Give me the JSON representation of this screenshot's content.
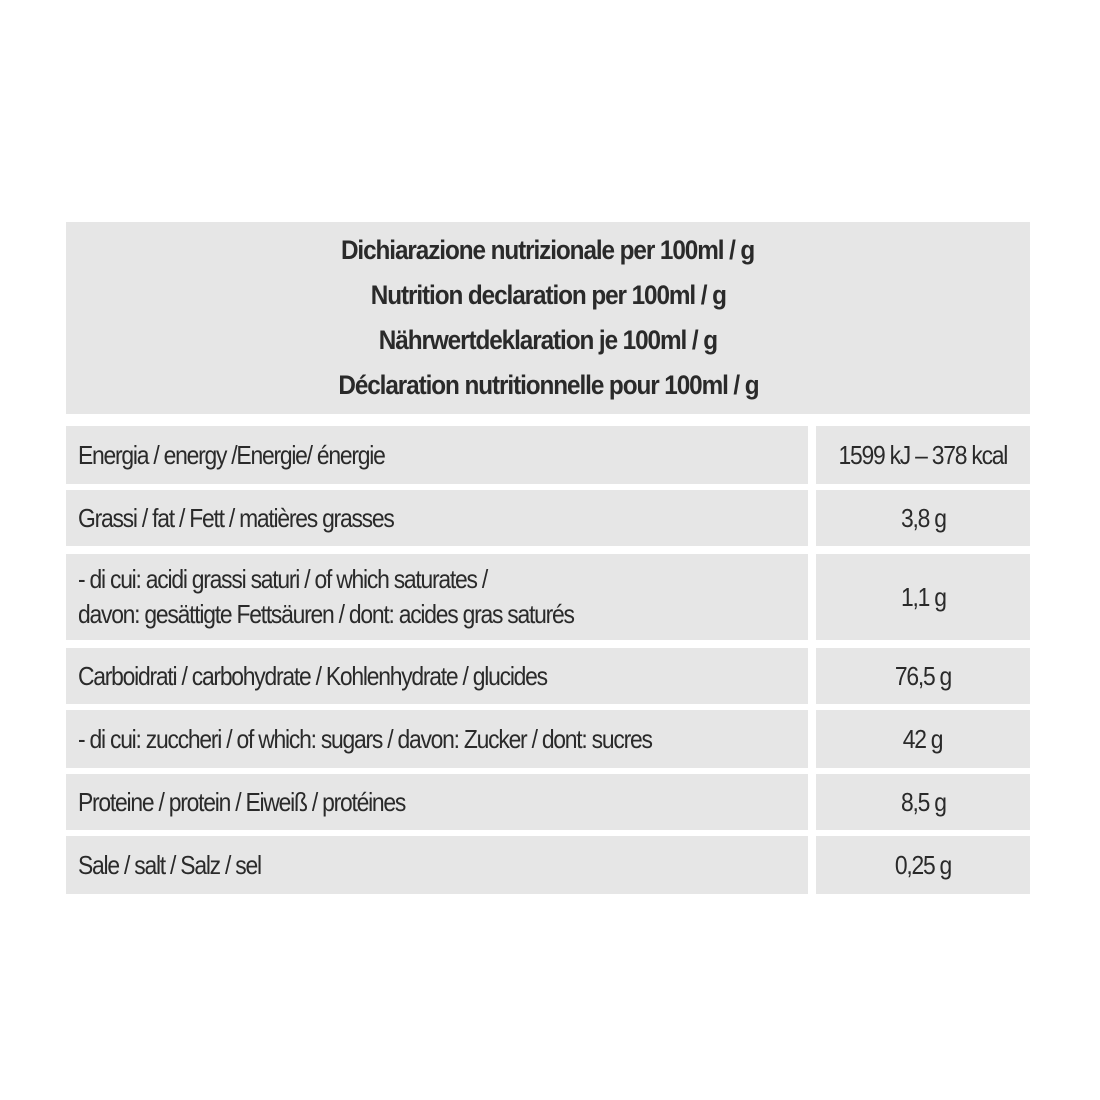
{
  "header": {
    "lines": [
      "Dichiarazione nutrizionale per 100ml / g",
      "Nutrition declaration per 100ml / g",
      "Nährwertdeklaration je 100ml / g",
      "Déclaration nutritionnelle pour 100ml / g"
    ]
  },
  "rows": [
    {
      "label": [
        "Energia / energy /Energie/ énergie"
      ],
      "value": "1599 kJ – 378 kcal"
    },
    {
      "label": [
        "Grassi / fat / Fett / matières grasses"
      ],
      "value": "3,8 g"
    },
    {
      "label": [
        "- di cui: acidi grassi saturi / of which saturates /",
        "davon: gesättigte Fettsäuren / dont: acides gras saturés"
      ],
      "value": "1,1 g"
    },
    {
      "label": [
        "Carboidrati / carbohydrate / Kohlenhydrate / glucides"
      ],
      "value": "76,5 g"
    },
    {
      "label": [
        "- di cui: zuccheri / of which: sugars / davon: Zucker / dont: sucres"
      ],
      "value": "42 g"
    },
    {
      "label": [
        "Proteine / protein / Eiweiß / protéines"
      ],
      "value": "8,5 g"
    },
    {
      "label": [
        "Sale / salt / Salz / sel"
      ],
      "value": "0,25 g"
    }
  ]
}
